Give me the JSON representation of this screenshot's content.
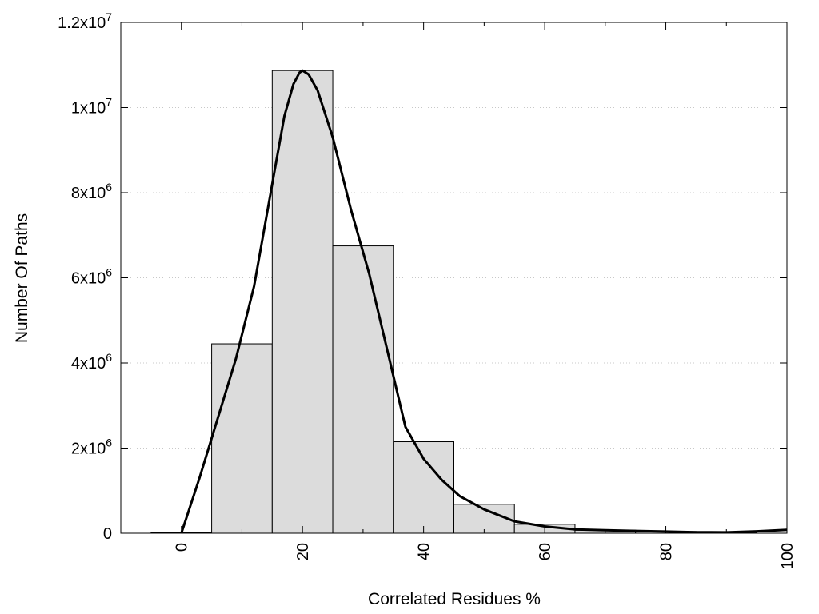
{
  "chart_data": {
    "type": "bar",
    "title": "",
    "xlabel": "Correlated Residues %",
    "ylabel": "Number Of Paths",
    "xlim": [
      -10,
      100
    ],
    "ylim": [
      0,
      12000000
    ],
    "grid": true,
    "xticks": [
      0,
      20,
      40,
      60,
      80,
      100
    ],
    "xtick_labels": [
      "0",
      "20",
      "40",
      "60",
      "80",
      "100"
    ],
    "yticks": [
      {
        "value": 0,
        "mant": "0",
        "exp": ""
      },
      {
        "value": 2000000,
        "mant": "2x10",
        "exp": "6"
      },
      {
        "value": 4000000,
        "mant": "4x10",
        "exp": "6"
      },
      {
        "value": 6000000,
        "mant": "6x10",
        "exp": "6"
      },
      {
        "value": 8000000,
        "mant": "8x10",
        "exp": "6"
      },
      {
        "value": 10000000,
        "mant": "1x10",
        "exp": "7"
      },
      {
        "value": 12000000,
        "mant": "1.2x10",
        "exp": "7"
      }
    ],
    "bin_width": 10,
    "bars": [
      {
        "x": 0,
        "value": 10000
      },
      {
        "x": 10,
        "value": 4450000
      },
      {
        "x": 20,
        "value": 10870000
      },
      {
        "x": 30,
        "value": 6750000
      },
      {
        "x": 40,
        "value": 2150000
      },
      {
        "x": 50,
        "value": 680000
      },
      {
        "x": 60,
        "value": 210000
      },
      {
        "x": 70,
        "value": 70000
      },
      {
        "x": 80,
        "value": 40000
      },
      {
        "x": 90,
        "value": 20000
      }
    ],
    "curve": {
      "x": [
        0,
        3,
        6,
        9,
        12,
        15,
        17,
        18.5,
        19.5,
        20,
        21,
        22.5,
        25,
        28,
        31,
        34,
        37,
        40,
        43,
        46,
        50,
        55,
        60,
        65,
        70,
        75,
        80,
        85,
        90,
        95,
        100
      ],
      "y": [
        0,
        1300000,
        2700000,
        4100000,
        5800000,
        8200000,
        9800000,
        10550000,
        10820000,
        10870000,
        10780000,
        10400000,
        9300000,
        7600000,
        6100000,
        4300000,
        2500000,
        1750000,
        1250000,
        870000,
        560000,
        280000,
        160000,
        90000,
        70000,
        55000,
        40000,
        25000,
        20000,
        45000,
        80000
      ]
    },
    "colors": {
      "bar_fill": "#dcdcdc",
      "bar_stroke": "#000000",
      "curve": "#000000",
      "grid": "#c8c8c8"
    }
  }
}
